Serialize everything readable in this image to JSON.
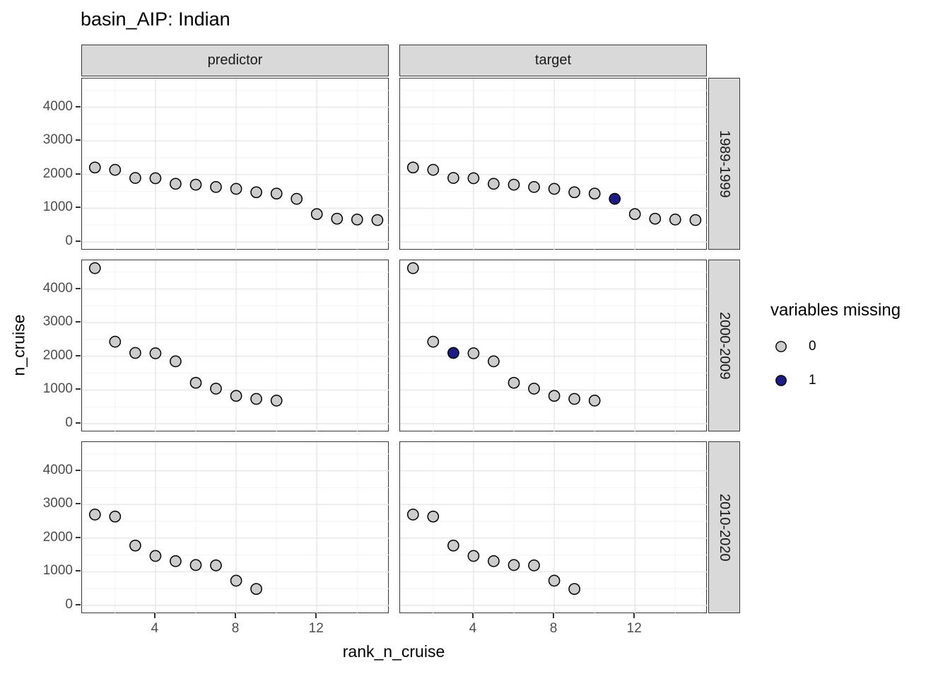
{
  "chart_data": {
    "type": "scatter",
    "title": "basin_AIP: Indian",
    "xlabel": "rank_n_cruise",
    "ylabel": "n_cruise",
    "facet_columns": [
      "predictor",
      "target"
    ],
    "facet_rows": [
      "1989-1999",
      "2000-2009",
      "2010-2020"
    ],
    "x_ticks": [
      4,
      8,
      12
    ],
    "x_minor_ticks": [
      2,
      6,
      10,
      14
    ],
    "y_ticks": [
      0,
      1000,
      2000,
      3000,
      4000
    ],
    "y_minor_ticks": [
      500,
      1500,
      2500,
      3500,
      4500
    ],
    "x_domain": [
      0.36,
      15.6
    ],
    "y_domain": [
      -252,
      4853
    ],
    "grid": true,
    "legend": {
      "title": "variables missing",
      "position": "right",
      "entries": [
        {
          "label": "0",
          "missing": 0,
          "fill": "#cccccc"
        },
        {
          "label": "1",
          "missing": 1,
          "fill": "#1c1c85"
        }
      ]
    },
    "colors": {
      "point_fill_missing_0": "#cccccc",
      "point_fill_missing_1": "#1c1c85",
      "point_stroke": "#000000",
      "strip_fill": "#d9d9d9",
      "panel_border": "#383838",
      "grid_major": "#e6e6e6",
      "grid_minor": "#f2f2f2",
      "tick_label": "#4d4d4d"
    },
    "panels": [
      {
        "facet_col": "predictor",
        "facet_row": "1989-1999",
        "points": [
          {
            "rank": 1,
            "n_cruise": 2210,
            "missing": 0
          },
          {
            "rank": 2,
            "n_cruise": 2140,
            "missing": 0
          },
          {
            "rank": 3,
            "n_cruise": 1900,
            "missing": 0
          },
          {
            "rank": 4,
            "n_cruise": 1890,
            "missing": 0
          },
          {
            "rank": 5,
            "n_cruise": 1725,
            "missing": 0
          },
          {
            "rank": 6,
            "n_cruise": 1700,
            "missing": 0
          },
          {
            "rank": 7,
            "n_cruise": 1630,
            "missing": 0
          },
          {
            "rank": 8,
            "n_cruise": 1575,
            "missing": 0
          },
          {
            "rank": 9,
            "n_cruise": 1475,
            "missing": 0
          },
          {
            "rank": 10,
            "n_cruise": 1435,
            "missing": 0
          },
          {
            "rank": 11,
            "n_cruise": 1280,
            "missing": 0
          },
          {
            "rank": 12,
            "n_cruise": 825,
            "missing": 0
          },
          {
            "rank": 13,
            "n_cruise": 690,
            "missing": 0
          },
          {
            "rank": 14,
            "n_cruise": 665,
            "missing": 0
          },
          {
            "rank": 15,
            "n_cruise": 650,
            "missing": 0
          }
        ]
      },
      {
        "facet_col": "target",
        "facet_row": "1989-1999",
        "points": [
          {
            "rank": 1,
            "n_cruise": 2210,
            "missing": 0
          },
          {
            "rank": 2,
            "n_cruise": 2140,
            "missing": 0
          },
          {
            "rank": 3,
            "n_cruise": 1900,
            "missing": 0
          },
          {
            "rank": 4,
            "n_cruise": 1890,
            "missing": 0
          },
          {
            "rank": 5,
            "n_cruise": 1725,
            "missing": 0
          },
          {
            "rank": 6,
            "n_cruise": 1700,
            "missing": 0
          },
          {
            "rank": 7,
            "n_cruise": 1630,
            "missing": 0
          },
          {
            "rank": 8,
            "n_cruise": 1575,
            "missing": 0
          },
          {
            "rank": 9,
            "n_cruise": 1475,
            "missing": 0
          },
          {
            "rank": 10,
            "n_cruise": 1435,
            "missing": 0
          },
          {
            "rank": 11,
            "n_cruise": 1280,
            "missing": 1
          },
          {
            "rank": 12,
            "n_cruise": 825,
            "missing": 0
          },
          {
            "rank": 13,
            "n_cruise": 690,
            "missing": 0
          },
          {
            "rank": 14,
            "n_cruise": 665,
            "missing": 0
          },
          {
            "rank": 15,
            "n_cruise": 650,
            "missing": 0
          }
        ]
      },
      {
        "facet_col": "predictor",
        "facet_row": "2000-2009",
        "points": [
          {
            "rank": 1,
            "n_cruise": 4620,
            "missing": 0
          },
          {
            "rank": 2,
            "n_cruise": 2435,
            "missing": 0
          },
          {
            "rank": 3,
            "n_cruise": 2100,
            "missing": 0
          },
          {
            "rank": 4,
            "n_cruise": 2090,
            "missing": 0
          },
          {
            "rank": 5,
            "n_cruise": 1850,
            "missing": 0
          },
          {
            "rank": 6,
            "n_cruise": 1215,
            "missing": 0
          },
          {
            "rank": 7,
            "n_cruise": 1040,
            "missing": 0
          },
          {
            "rank": 8,
            "n_cruise": 825,
            "missing": 0
          },
          {
            "rank": 9,
            "n_cruise": 735,
            "missing": 0
          },
          {
            "rank": 10,
            "n_cruise": 685,
            "missing": 0
          }
        ]
      },
      {
        "facet_col": "target",
        "facet_row": "2000-2009",
        "points": [
          {
            "rank": 1,
            "n_cruise": 4620,
            "missing": 0
          },
          {
            "rank": 2,
            "n_cruise": 2435,
            "missing": 0
          },
          {
            "rank": 3,
            "n_cruise": 2100,
            "missing": 1
          },
          {
            "rank": 4,
            "n_cruise": 2090,
            "missing": 0
          },
          {
            "rank": 5,
            "n_cruise": 1850,
            "missing": 0
          },
          {
            "rank": 6,
            "n_cruise": 1215,
            "missing": 0
          },
          {
            "rank": 7,
            "n_cruise": 1040,
            "missing": 0
          },
          {
            "rank": 8,
            "n_cruise": 825,
            "missing": 0
          },
          {
            "rank": 9,
            "n_cruise": 735,
            "missing": 0
          },
          {
            "rank": 10,
            "n_cruise": 685,
            "missing": 0
          }
        ]
      },
      {
        "facet_col": "predictor",
        "facet_row": "2010-2020",
        "points": [
          {
            "rank": 1,
            "n_cruise": 2700,
            "missing": 0
          },
          {
            "rank": 2,
            "n_cruise": 2640,
            "missing": 0
          },
          {
            "rank": 3,
            "n_cruise": 1780,
            "missing": 0
          },
          {
            "rank": 4,
            "n_cruise": 1470,
            "missing": 0
          },
          {
            "rank": 5,
            "n_cruise": 1315,
            "missing": 0
          },
          {
            "rank": 6,
            "n_cruise": 1200,
            "missing": 0
          },
          {
            "rank": 7,
            "n_cruise": 1190,
            "missing": 0
          },
          {
            "rank": 8,
            "n_cruise": 735,
            "missing": 0
          },
          {
            "rank": 9,
            "n_cruise": 490,
            "missing": 0
          }
        ]
      },
      {
        "facet_col": "target",
        "facet_row": "2010-2020",
        "points": [
          {
            "rank": 1,
            "n_cruise": 2700,
            "missing": 0
          },
          {
            "rank": 2,
            "n_cruise": 2640,
            "missing": 0
          },
          {
            "rank": 3,
            "n_cruise": 1780,
            "missing": 0
          },
          {
            "rank": 4,
            "n_cruise": 1470,
            "missing": 0
          },
          {
            "rank": 5,
            "n_cruise": 1315,
            "missing": 0
          },
          {
            "rank": 6,
            "n_cruise": 1200,
            "missing": 0
          },
          {
            "rank": 7,
            "n_cruise": 1190,
            "missing": 0
          },
          {
            "rank": 8,
            "n_cruise": 735,
            "missing": 0
          },
          {
            "rank": 9,
            "n_cruise": 490,
            "missing": 0
          }
        ]
      }
    ]
  }
}
